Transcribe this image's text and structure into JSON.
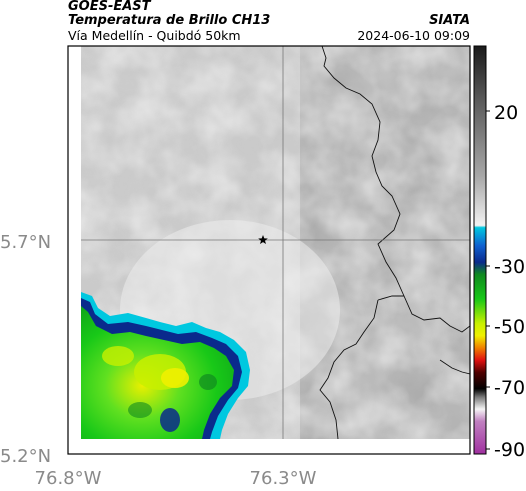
{
  "header": {
    "satellite": "GOES-EAST",
    "product": "Temperatura de Brillo CH13",
    "region": "Vía Medellín - Quibdó 50km",
    "agency": "SIATA",
    "datetime": "2024-06-10 09:09"
  },
  "map": {
    "lat_labels": [
      "5.7°N",
      "5.2°N"
    ],
    "lon_labels": [
      "76.8°W",
      "76.3°W"
    ],
    "marker": "star-icon"
  },
  "colorbar": {
    "tick_labels": [
      "20",
      "-30",
      "-50",
      "-70",
      "-90"
    ],
    "colors": {
      "warm_gray_top": "#1a1a1a",
      "mid_gray": "#9a9a9a",
      "light": "#f0f0f0",
      "cyan": "#00c8e0",
      "blue": "#0a2a8c",
      "green": "#18c818",
      "yellow": "#f0f000",
      "red": "#e01010",
      "dark_red": "#500000",
      "black": "#000000",
      "magenta": "#b040b0"
    }
  }
}
